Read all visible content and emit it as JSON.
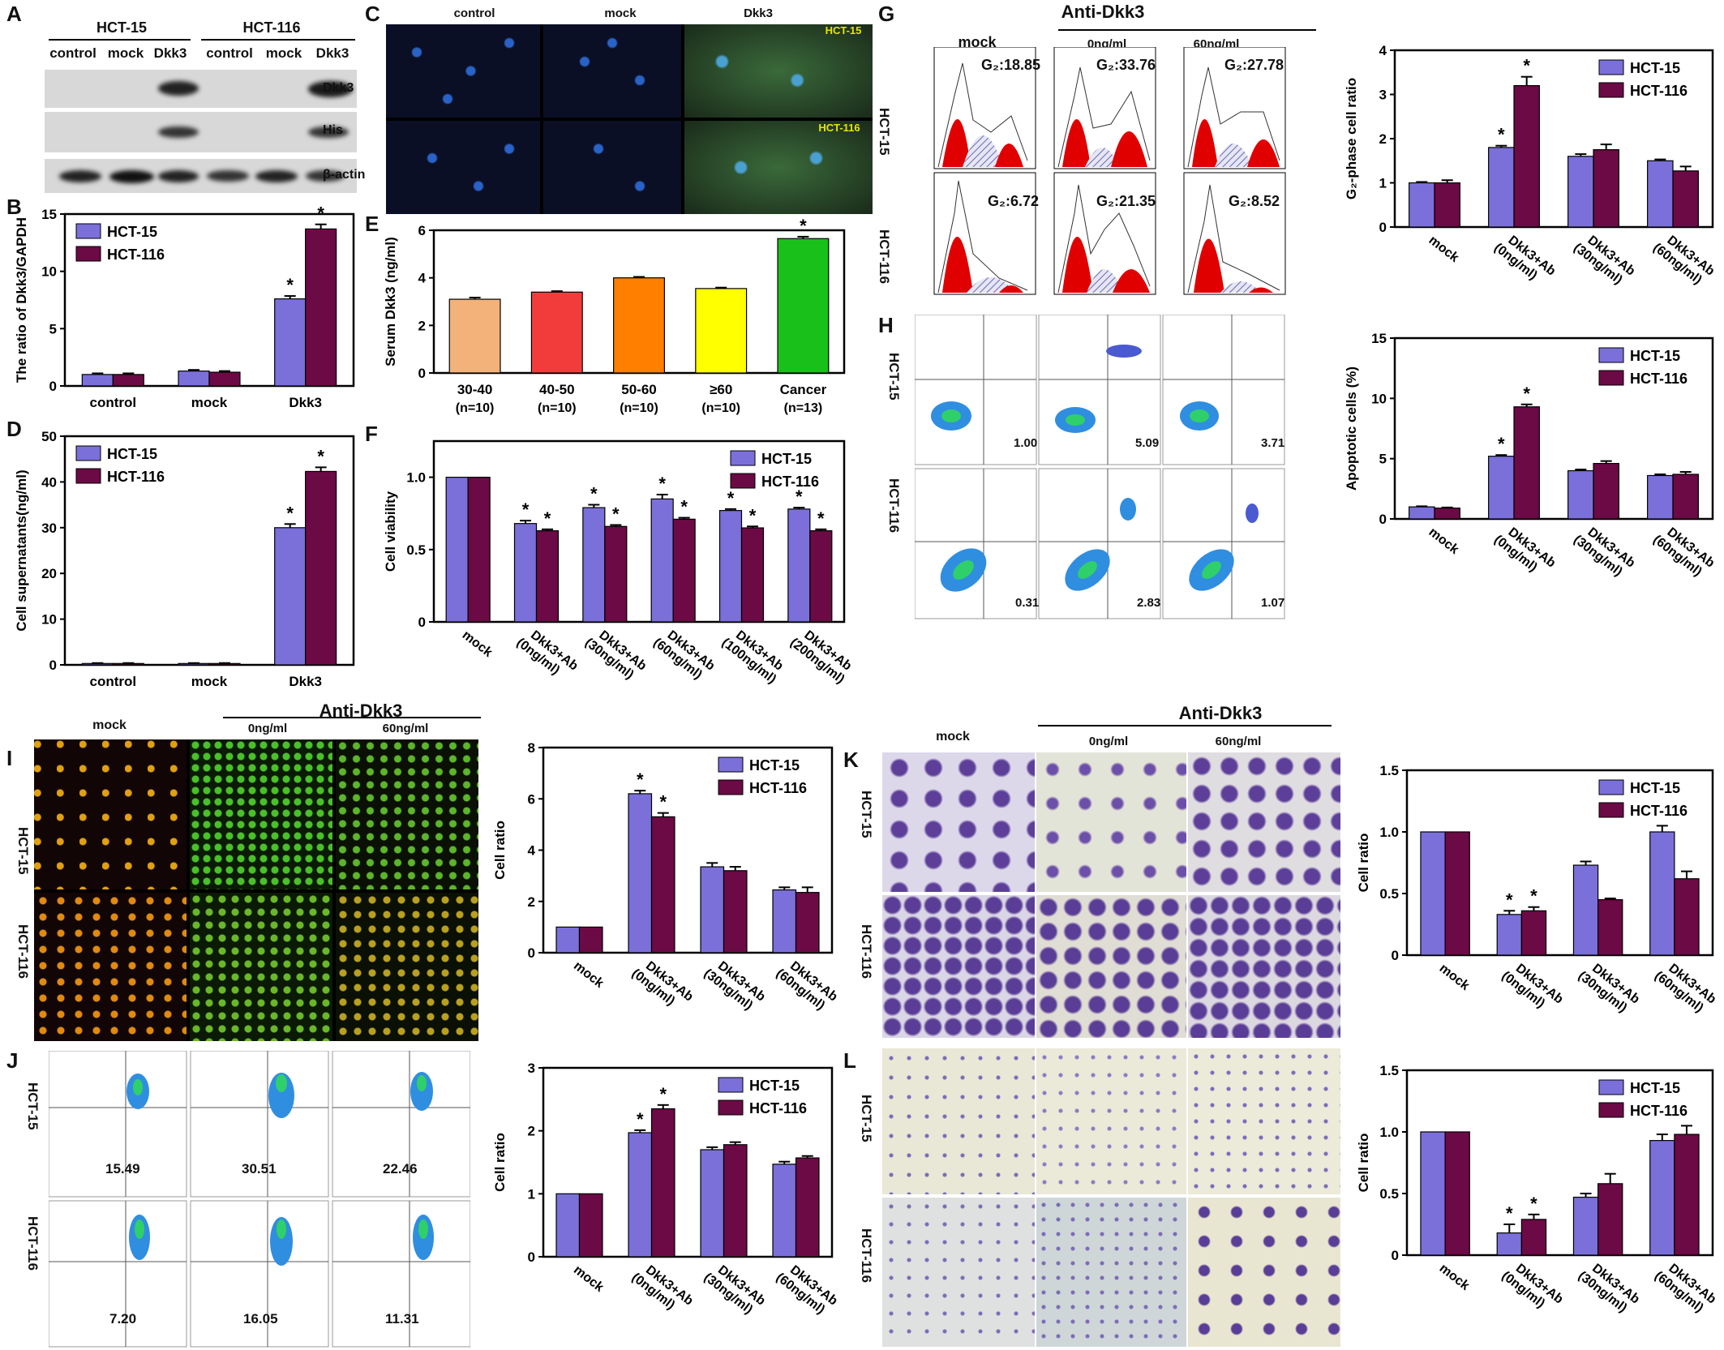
{
  "panel_labels": {
    "A": "A",
    "B": "B",
    "C": "C",
    "D": "D",
    "E": "E",
    "F": "F",
    "G": "G",
    "H": "H",
    "I": "I",
    "J": "J",
    "K": "K",
    "L": "L"
  },
  "panelA": {
    "groups": [
      "HCT-15",
      "HCT-116"
    ],
    "lanes": [
      "control",
      "mock",
      "Dkk3",
      "control",
      "mock",
      "Dkk3"
    ],
    "bands": [
      "Dkk3",
      "His",
      "β-actin"
    ]
  },
  "panelC": {
    "columns": [
      "control",
      "mock",
      "Dkk3"
    ],
    "row_labels": [
      "HCT-15",
      "HCT-116"
    ]
  },
  "common": {
    "anti": "Anti-Dkk3",
    "conc0": "0ng/ml",
    "conc60": "60ng/ml",
    "mock": "mock",
    "rows": [
      "HCT-15",
      "HCT-116"
    ],
    "star": "*"
  },
  "panelG_values": [
    "G₂:18.85",
    "G₂:33.76",
    "G₂:27.78",
    "G₂:6.72",
    "G₂:21.35",
    "G₂:8.52"
  ],
  "panelH_values": [
    "1.00",
    "5.09",
    "3.71",
    "0.31",
    "2.83",
    "1.07"
  ],
  "panelJ_values": [
    "15.49",
    "30.51",
    "22.46",
    "7.20",
    "16.05",
    "11.31"
  ],
  "colors": {
    "hct15": "#7b70d9",
    "hct116": "#6b0a45",
    "E": [
      "#f3b27a",
      "#f23c3c",
      "#ff7f00",
      "#ffff00",
      "#19c019"
    ]
  },
  "chart_data": [
    {
      "id": "B",
      "type": "bar",
      "ylabel": "The ratio of Dkk3/GAPDH",
      "categories": [
        "control",
        "mock",
        "Dkk3"
      ],
      "ylim": [
        0,
        15
      ],
      "yticks": [
        0,
        5,
        10,
        15
      ],
      "series": [
        {
          "name": "HCT-15",
          "values": [
            1.0,
            1.3,
            7.6
          ],
          "err": [
            0.1,
            0.1,
            0.25
          ]
        },
        {
          "name": "HCT-116",
          "values": [
            1.0,
            1.2,
            13.7
          ],
          "err": [
            0.1,
            0.1,
            0.4
          ]
        }
      ],
      "stars": [
        [
          false,
          false,
          true
        ],
        [
          false,
          false,
          true
        ]
      ],
      "legend": "top-left",
      "rotate_ticks": false
    },
    {
      "id": "D",
      "type": "bar",
      "ylabel": "Cell  supernatants(ng/ml)",
      "categories": [
        "control",
        "mock",
        "Dkk3"
      ],
      "ylim": [
        0,
        50
      ],
      "yticks": [
        0,
        10,
        20,
        30,
        40,
        50
      ],
      "series": [
        {
          "name": "HCT-15",
          "values": [
            0.3,
            0.3,
            30.0
          ],
          "err": [
            0.1,
            0.1,
            0.8
          ]
        },
        {
          "name": "HCT-116",
          "values": [
            0.3,
            0.3,
            42.3
          ],
          "err": [
            0.1,
            0.1,
            0.9
          ]
        }
      ],
      "stars": [
        [
          false,
          false,
          true
        ],
        [
          false,
          false,
          true
        ]
      ],
      "legend": "top-left",
      "rotate_ticks": false
    },
    {
      "id": "E",
      "type": "bar",
      "ylabel": "Serum Dkk3 (ng/ml)",
      "categories": [
        "30-40",
        "40-50",
        "50-60",
        "≥60",
        "Cancer"
      ],
      "subcategories": [
        "(n=10)",
        "(n=10)",
        "(n=10)",
        "(n=10)",
        "(n=13)"
      ],
      "ylim": [
        0,
        6
      ],
      "yticks": [
        0,
        2,
        4,
        6
      ],
      "series": [
        {
          "name": "Serum",
          "values": [
            3.1,
            3.4,
            4.0,
            3.55,
            5.65
          ],
          "err": [
            0.07,
            0.04,
            0.04,
            0.04,
            0.08
          ]
        }
      ],
      "stars": [
        [
          false,
          false,
          false,
          false,
          true
        ]
      ],
      "legend": "none",
      "rotate_ticks": false
    },
    {
      "id": "F",
      "type": "bar",
      "ylabel": "Cell viability",
      "categories": [
        "mock",
        "Dkk3+Ab (0ng/ml)",
        "Dkk3+Ab (30ng/ml)",
        "Dkk3+Ab (60ng/ml)",
        "Dkk3+Ab (100ng/ml)",
        "Dkk3+Ab (200ng/ml)"
      ],
      "ylim": [
        0,
        1.25
      ],
      "yticks": [
        0,
        0.5,
        1.0
      ],
      "series": [
        {
          "name": "HCT-15",
          "values": [
            1.0,
            0.68,
            0.79,
            0.85,
            0.77,
            0.78
          ],
          "err": [
            0,
            0.02,
            0.02,
            0.03,
            0.01,
            0.01
          ]
        },
        {
          "name": "HCT-116",
          "values": [
            1.0,
            0.63,
            0.66,
            0.71,
            0.65,
            0.63
          ],
          "err": [
            0,
            0.01,
            0.01,
            0.01,
            0.01,
            0.01
          ]
        }
      ],
      "stars": [
        [
          false,
          true,
          true,
          true,
          true,
          true
        ],
        [
          false,
          true,
          true,
          true,
          true,
          true
        ]
      ],
      "legend": "top-right",
      "rotate_ticks": true
    },
    {
      "id": "G",
      "type": "bar",
      "ylabel": "G₂-phase cell ratio",
      "categories": [
        "mock",
        "Dkk3+Ab (0ng/ml)",
        "Dkk3+Ab (30ng/ml)",
        "Dkk3+Ab (60ng/ml)"
      ],
      "ylim": [
        0,
        4
      ],
      "yticks": [
        0,
        1,
        2,
        3,
        4
      ],
      "series": [
        {
          "name": "HCT-15",
          "values": [
            1.0,
            1.8,
            1.6,
            1.5
          ],
          "err": [
            0.02,
            0.04,
            0.05,
            0.03
          ]
        },
        {
          "name": "HCT-116",
          "values": [
            1.0,
            3.2,
            1.75,
            1.27
          ],
          "err": [
            0.06,
            0.2,
            0.12,
            0.1
          ]
        }
      ],
      "stars": [
        [
          false,
          true,
          false,
          false
        ],
        [
          false,
          true,
          false,
          false
        ]
      ],
      "legend": "top-right",
      "rotate_ticks": true
    },
    {
      "id": "H",
      "type": "bar",
      "ylabel": "Apoptotic cells (%)",
      "categories": [
        "mock",
        "Dkk3+Ab (0ng/ml)",
        "Dkk3+Ab (30ng/ml)",
        "Dkk3+Ab (60ng/ml)"
      ],
      "ylim": [
        0,
        15
      ],
      "yticks": [
        0,
        5,
        10,
        15
      ],
      "series": [
        {
          "name": "HCT-15",
          "values": [
            1.0,
            5.2,
            4.0,
            3.6
          ],
          "err": [
            0.05,
            0.1,
            0.1,
            0.1
          ]
        },
        {
          "name": "HCT-116",
          "values": [
            0.9,
            9.3,
            4.6,
            3.7
          ],
          "err": [
            0.05,
            0.2,
            0.2,
            0.2
          ]
        }
      ],
      "stars": [
        [
          false,
          true,
          false,
          false
        ],
        [
          false,
          true,
          false,
          false
        ]
      ],
      "legend": "top-right",
      "rotate_ticks": true
    },
    {
      "id": "I",
      "type": "bar",
      "ylabel": "Cell ratio",
      "categories": [
        "mock",
        "Dkk3+Ab (0ng/ml)",
        "Dkk3+Ab (30ng/ml)",
        "Dkk3+Ab (60ng/ml)"
      ],
      "ylim": [
        0,
        8
      ],
      "yticks": [
        0,
        2,
        4,
        6,
        8
      ],
      "series": [
        {
          "name": "HCT-15",
          "values": [
            1.0,
            6.2,
            3.35,
            2.45
          ],
          "err": [
            0,
            0.12,
            0.15,
            0.1
          ]
        },
        {
          "name": "HCT-116",
          "values": [
            1.0,
            5.3,
            3.2,
            2.35
          ],
          "err": [
            0,
            0.15,
            0.15,
            0.2
          ]
        }
      ],
      "stars": [
        [
          false,
          true,
          false,
          false
        ],
        [
          false,
          true,
          false,
          false
        ]
      ],
      "legend": "top-right",
      "rotate_ticks": true
    },
    {
      "id": "J",
      "type": "bar",
      "ylabel": "Cell ratio",
      "categories": [
        "mock",
        "Dkk3+Ab (0ng/ml)",
        "Dkk3+Ab (30ng/ml)",
        "Dkk3+Ab (60ng/ml)"
      ],
      "ylim": [
        0,
        3
      ],
      "yticks": [
        0,
        1,
        2,
        3
      ],
      "series": [
        {
          "name": "HCT-15",
          "values": [
            1.0,
            1.97,
            1.7,
            1.47
          ],
          "err": [
            0,
            0.04,
            0.04,
            0.04
          ]
        },
        {
          "name": "HCT-116",
          "values": [
            1.0,
            2.35,
            1.78,
            1.57
          ],
          "err": [
            0,
            0.06,
            0.04,
            0.03
          ]
        }
      ],
      "stars": [
        [
          false,
          true,
          false,
          false
        ],
        [
          false,
          true,
          false,
          false
        ]
      ],
      "legend": "top-right",
      "rotate_ticks": true
    },
    {
      "id": "K",
      "type": "bar",
      "ylabel": "Cell ratio",
      "categories": [
        "mock",
        "Dkk3+Ab (0ng/ml)",
        "Dkk3+Ab (30ng/ml)",
        "Dkk3+Ab (60ng/ml)"
      ],
      "ylim": [
        0,
        1.5
      ],
      "yticks": [
        0,
        0.5,
        1.0,
        1.5
      ],
      "series": [
        {
          "name": "HCT-15",
          "values": [
            1.0,
            0.33,
            0.73,
            1.0
          ],
          "err": [
            0,
            0.03,
            0.03,
            0.05
          ]
        },
        {
          "name": "HCT-116",
          "values": [
            1.0,
            0.36,
            0.45,
            0.62
          ],
          "err": [
            0,
            0.03,
            0.01,
            0.06
          ]
        }
      ],
      "stars": [
        [
          false,
          true,
          false,
          false
        ],
        [
          false,
          true,
          false,
          false
        ]
      ],
      "legend": "top-right",
      "rotate_ticks": true
    },
    {
      "id": "L",
      "type": "bar",
      "ylabel": "Cell ratio",
      "categories": [
        "mock",
        "Dkk3+Ab (0ng/ml)",
        "Dkk3+Ab (30ng/ml)",
        "Dkk3+Ab (60ng/ml)"
      ],
      "ylim": [
        0,
        1.5
      ],
      "yticks": [
        0,
        0.5,
        1.0,
        1.5
      ],
      "series": [
        {
          "name": "HCT-15",
          "values": [
            1.0,
            0.18,
            0.47,
            0.93
          ],
          "err": [
            0,
            0.07,
            0.03,
            0.05
          ]
        },
        {
          "name": "HCT-116",
          "values": [
            1.0,
            0.29,
            0.58,
            0.98
          ],
          "err": [
            0,
            0.04,
            0.08,
            0.07
          ]
        }
      ],
      "stars": [
        [
          false,
          true,
          false,
          false
        ],
        [
          false,
          true,
          false,
          false
        ]
      ],
      "legend": "top-right",
      "rotate_ticks": true
    }
  ]
}
